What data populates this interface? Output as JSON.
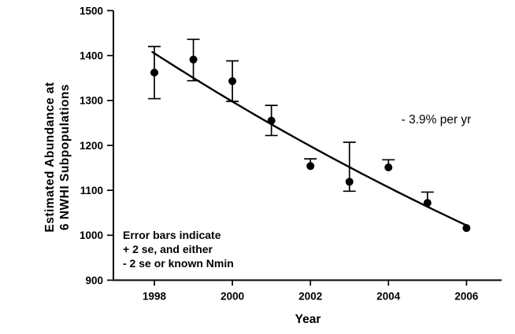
{
  "figure": {
    "background_color": "#ffffff",
    "ink_color": "#000000"
  },
  "chart_data": {
    "type": "scatter",
    "title": "",
    "xlabel": "Year",
    "ylabel_lines": [
      "Estimated Abundance at",
      "6 NWHI Subpopulations"
    ],
    "x": [
      1998,
      1999,
      2000,
      2001,
      2002,
      2003,
      2004,
      2005,
      2006
    ],
    "y": [
      1362,
      1391,
      1343,
      1255,
      1154,
      1119,
      1151,
      1072,
      1016
    ],
    "error_upper": [
      1420,
      1436,
      1388,
      1289,
      1170,
      1207,
      1168,
      1096,
      null
    ],
    "error_lower": [
      1304,
      1344,
      1298,
      1222,
      null,
      1098,
      null,
      null,
      null
    ],
    "x_ticks": [
      1998,
      2000,
      2002,
      2004,
      2006
    ],
    "y_ticks": [
      900,
      1000,
      1100,
      1200,
      1300,
      1400,
      1500
    ],
    "xlim": [
      1996.95,
      2006.9
    ],
    "ylim": [
      900,
      1500
    ],
    "grid": false,
    "legend": null,
    "annotation": "- 3.9% per yr",
    "trend": {
      "type": "exponential",
      "annual_rate_percent": -3.9,
      "value_at_1998": 1405,
      "draw_from_year": 1997.95,
      "draw_to_year": 2006.12
    },
    "note_lines": [
      "Error bars indicate",
      "+ 2 se, and either",
      "- 2 se or known Nmin"
    ]
  }
}
